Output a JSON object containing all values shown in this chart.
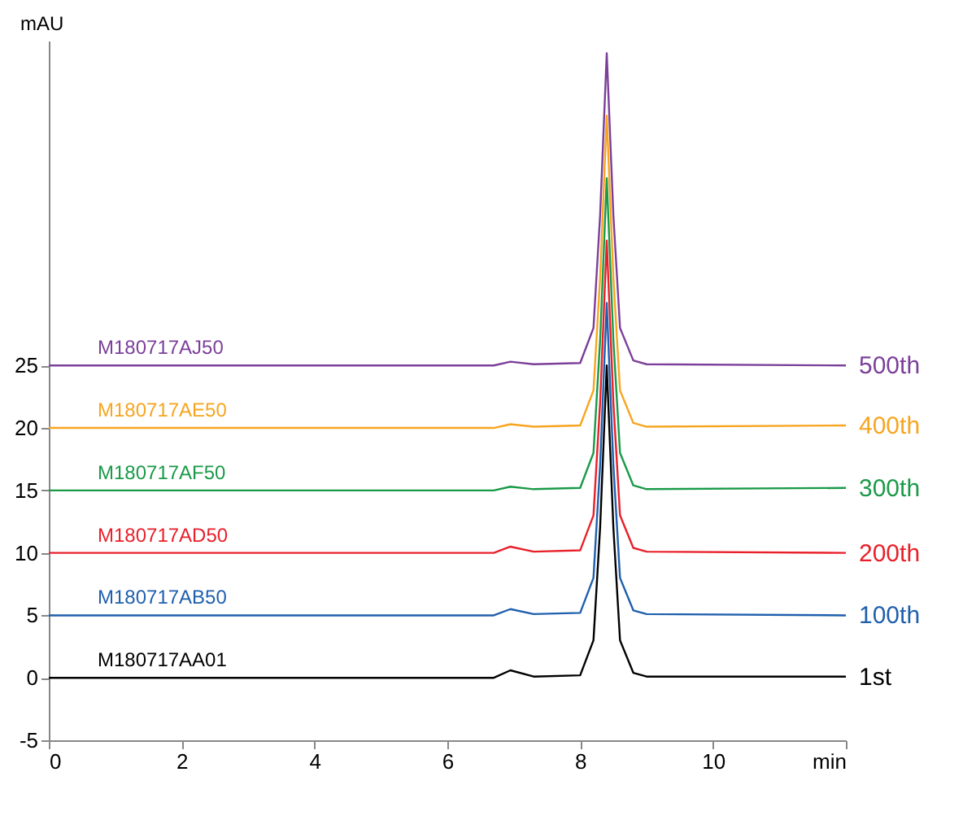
{
  "chart_data": {
    "type": "line",
    "ylabel": "mAU",
    "xlim": [
      0,
      12
    ],
    "ylim": [
      -5,
      51
    ],
    "xticks": [
      0,
      2,
      4,
      6,
      8,
      10,
      {
        "value": 12,
        "label": "min"
      }
    ],
    "yticks": [
      -5,
      0,
      5,
      10,
      15,
      20,
      25
    ],
    "x": [
      0,
      6.7,
      6.95,
      7.3,
      8.0,
      8.2,
      8.3,
      8.4,
      8.5,
      8.6,
      8.8,
      9.0,
      12
    ],
    "series": [
      {
        "name": "1st",
        "color": "#000000",
        "values": [
          0,
          0,
          0.6,
          0.1,
          0.2,
          3,
          12,
          25,
          12,
          3,
          0.4,
          0.1,
          0.1
        ]
      },
      {
        "name": "100th",
        "color": "#1f5fad",
        "values": [
          5,
          5,
          5.5,
          5.1,
          5.2,
          8,
          17,
          30,
          17,
          8,
          5.4,
          5.1,
          5
        ]
      },
      {
        "name": "200th",
        "color": "#e8202a",
        "values": [
          10,
          10,
          10.5,
          10.1,
          10.2,
          13,
          22,
          35,
          22,
          13,
          10.4,
          10.1,
          10
        ]
      },
      {
        "name": "300th",
        "color": "#1a9a48",
        "values": [
          15,
          15,
          15.3,
          15.1,
          15.2,
          18,
          27,
          40,
          27,
          18,
          15.4,
          15.1,
          15.2
        ]
      },
      {
        "name": "400th",
        "color": "#f7a520",
        "values": [
          20,
          20,
          20.3,
          20.1,
          20.2,
          23,
          32,
          45,
          32,
          23,
          20.4,
          20.1,
          20.2
        ]
      },
      {
        "name": "500th",
        "color": "#7b3f9a",
        "values": [
          25,
          25,
          25.3,
          25.1,
          25.2,
          28,
          37,
          50,
          37,
          28,
          25.4,
          25.1,
          25
        ]
      }
    ],
    "annotations": [
      "M180717AA01",
      "M180717AB50",
      "M180717AD50",
      "M180717AF50",
      "M180717AE50",
      "M180717AJ50"
    ],
    "grid": false,
    "legend": false,
    "marker": "none",
    "line_style": "solid"
  }
}
